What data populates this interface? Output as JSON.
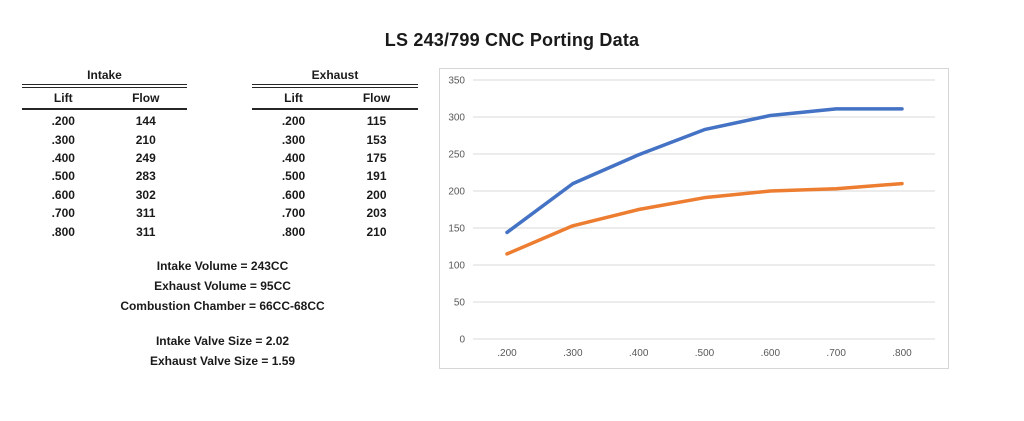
{
  "title": "LS 243/799 CNC Porting Data",
  "tables": {
    "intake": {
      "caption": "Intake",
      "columns": [
        "Lift",
        "Flow"
      ],
      "rows": [
        {
          "lift": ".200",
          "flow": "144"
        },
        {
          "lift": ".300",
          "flow": "210"
        },
        {
          "lift": ".400",
          "flow": "249"
        },
        {
          "lift": ".500",
          "flow": "283"
        },
        {
          "lift": ".600",
          "flow": "302"
        },
        {
          "lift": ".700",
          "flow": "311"
        },
        {
          "lift": ".800",
          "flow": "311"
        }
      ]
    },
    "exhaust": {
      "caption": "Exhaust",
      "columns": [
        "Lift",
        "Flow"
      ],
      "rows": [
        {
          "lift": ".200",
          "flow": "115"
        },
        {
          "lift": ".300",
          "flow": "153"
        },
        {
          "lift": ".400",
          "flow": "175"
        },
        {
          "lift": ".500",
          "flow": "191"
        },
        {
          "lift": ".600",
          "flow": "200"
        },
        {
          "lift": ".700",
          "flow": "203"
        },
        {
          "lift": ".800",
          "flow": "210"
        }
      ]
    }
  },
  "stats": {
    "group1": [
      "Intake Volume = 243CC",
      "Exhaust Volume = 95CC",
      "Combustion Chamber = 66CC-68CC"
    ],
    "group2": [
      "Intake Valve Size = 2.02",
      "Exhaust Valve Size = 1.59"
    ]
  },
  "chart_data": {
    "type": "line",
    "title": "",
    "xlabel": "",
    "ylabel": "",
    "x": [
      ".200",
      ".300",
      ".400",
      ".500",
      ".600",
      ".700",
      ".800"
    ],
    "series": [
      {
        "name": "Intake",
        "color": "#4472C4",
        "values": [
          144,
          210,
          249,
          283,
          302,
          311,
          311
        ]
      },
      {
        "name": "Exhaust",
        "color": "#ED7D31",
        "values": [
          115,
          153,
          175,
          191,
          200,
          203,
          210
        ]
      }
    ],
    "ylim": [
      0,
      350
    ],
    "ytick_step": 50,
    "grid": true,
    "legend": "none",
    "gridline_color": "#d9d9d9",
    "axis_label_color": "#595959"
  }
}
